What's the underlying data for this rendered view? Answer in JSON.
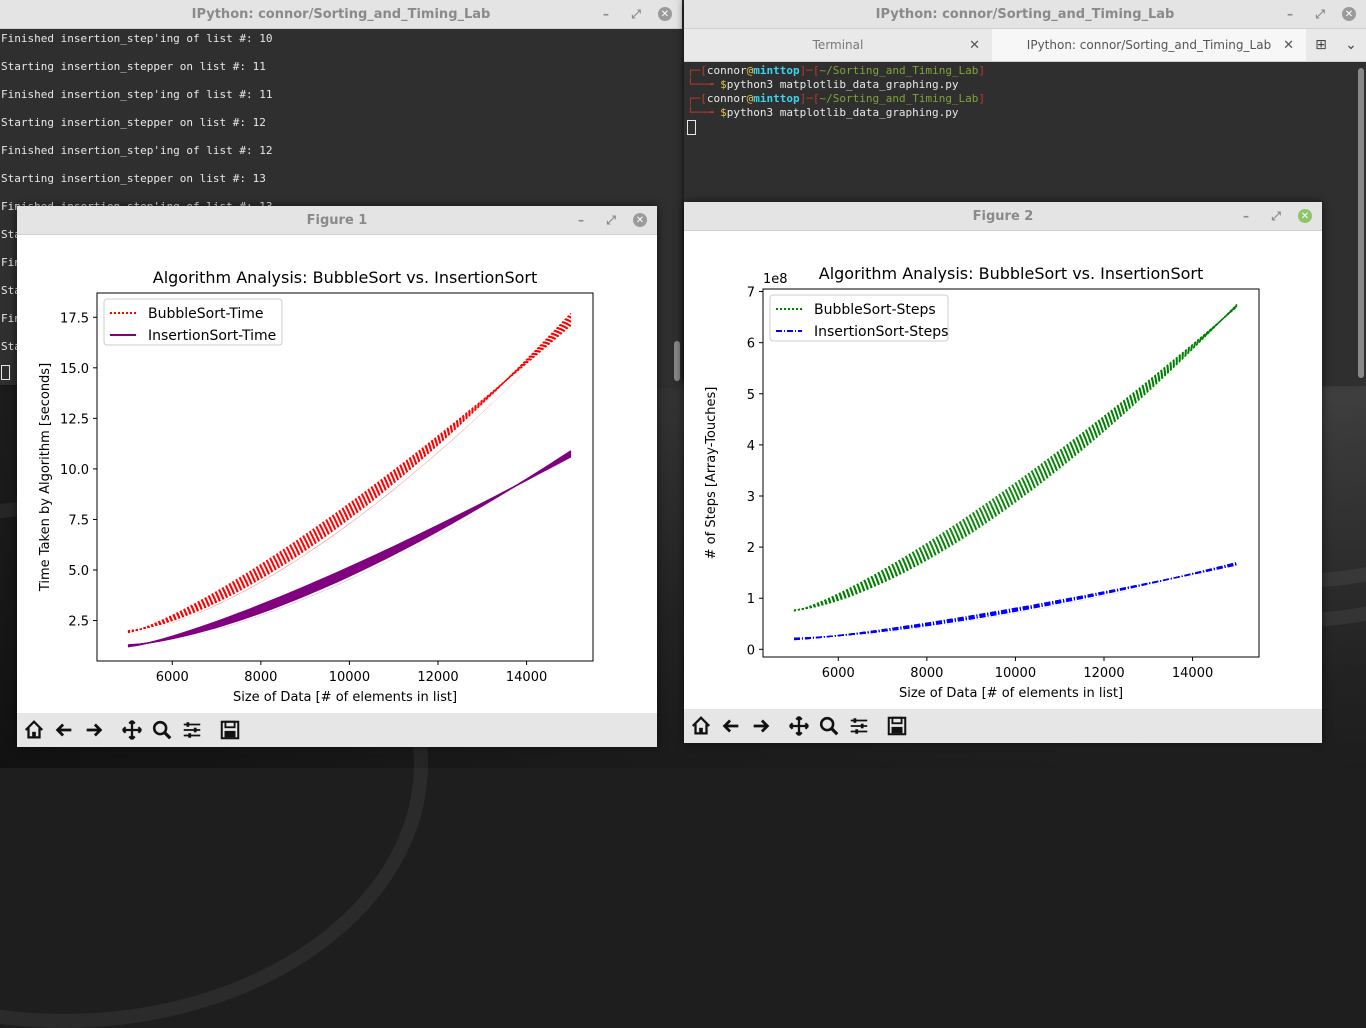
{
  "left_terminal": {
    "title": "IPython: connor/Sorting_and_Timing_Lab",
    "lines": [
      "Finished insertion_step'ing of list #: 10",
      "Starting insertion_stepper on list #: 11",
      "Finished insertion_step'ing of list #: 11",
      "Starting insertion_stepper on list #: 12",
      "Finished insertion_step'ing of list #: 12",
      "Starting insertion_stepper on list #: 13",
      "Finished insertion_step'ing of list #: 13"
    ],
    "partial_lines": [
      "Sta",
      "Fin",
      "Sta",
      "Fin",
      "Sta"
    ]
  },
  "right_terminal": {
    "title": "IPython: connor/Sorting_and_Timing_Lab",
    "tabs": [
      {
        "label": "Terminal"
      },
      {
        "label": "IPython: connor/Sorting_and_Timing_Lab"
      }
    ],
    "prompt": {
      "user": "connor",
      "at": "@",
      "host": "minttop",
      "path": "~/Sorting_and_Timing_Lab",
      "command": "python3 matplotlib_data_graphing.py",
      "dollar": "$"
    }
  },
  "figure1": {
    "title": "Figure 1",
    "chart_data": {
      "type": "line",
      "title": "Algorithm Analysis: BubbleSort vs. InsertionSort",
      "xlabel": "Size of Data [# of elements in list]",
      "ylabel": "Time Taken by Algorithm [seconds]",
      "xlim": [
        4300,
        15500
      ],
      "ylim": [
        0.5,
        18.7
      ],
      "xticks": [
        6000,
        8000,
        10000,
        12000,
        14000
      ],
      "yticks": [
        2.5,
        5.0,
        7.5,
        10.0,
        12.5,
        15.0,
        17.5
      ],
      "ytick_labels": [
        "2.5",
        "5.0",
        "7.5",
        "10.0",
        "12.5",
        "15.0",
        "17.5"
      ],
      "legend_position": "upper-left",
      "series": [
        {
          "name": "BubbleSort-Time",
          "color": "#ff0000",
          "style": "dotted",
          "x": [
            5000,
            15000
          ],
          "upper": [
            2.0,
            17.7
          ],
          "lower": [
            1.9,
            17.1
          ]
        },
        {
          "name": "InsertionSort-Time",
          "color": "#800080",
          "style": "solid",
          "x": [
            5000,
            15000
          ],
          "upper": [
            1.3,
            10.9
          ],
          "lower": [
            1.2,
            10.6
          ]
        }
      ]
    }
  },
  "figure2": {
    "title": "Figure 2",
    "chart_data": {
      "type": "line",
      "title": "Algorithm Analysis: BubbleSort vs. InsertionSort",
      "xlabel": "Size of Data [# of elements in list]",
      "ylabel": "# of Steps [Array-Touches]",
      "offset_label": "1e8",
      "xlim": [
        4300,
        15500
      ],
      "ylim": [
        -0.15,
        7.05
      ],
      "xticks": [
        6000,
        8000,
        10000,
        12000,
        14000
      ],
      "yticks": [
        0,
        1,
        2,
        3,
        4,
        5,
        6,
        7
      ],
      "ytick_labels": [
        "0",
        "1",
        "2",
        "3",
        "4",
        "5",
        "6",
        "7"
      ],
      "legend_position": "upper-left",
      "series": [
        {
          "name": "BubbleSort-Steps",
          "color": "#008000",
          "style": "dotted",
          "x": [
            5000,
            15000
          ],
          "upper": [
            0.77,
            6.75
          ],
          "lower": [
            0.75,
            6.7
          ]
        },
        {
          "name": "InsertionSort-Steps",
          "color": "#0000ff",
          "style": "dashdot",
          "x": [
            5000,
            15000
          ],
          "upper": [
            0.22,
            1.7
          ],
          "lower": [
            0.19,
            1.65
          ]
        }
      ]
    }
  },
  "toolbar_icons": [
    "home-icon",
    "back-icon",
    "forward-icon",
    "pan-icon",
    "zoom-icon",
    "configure-icon",
    "save-icon"
  ]
}
